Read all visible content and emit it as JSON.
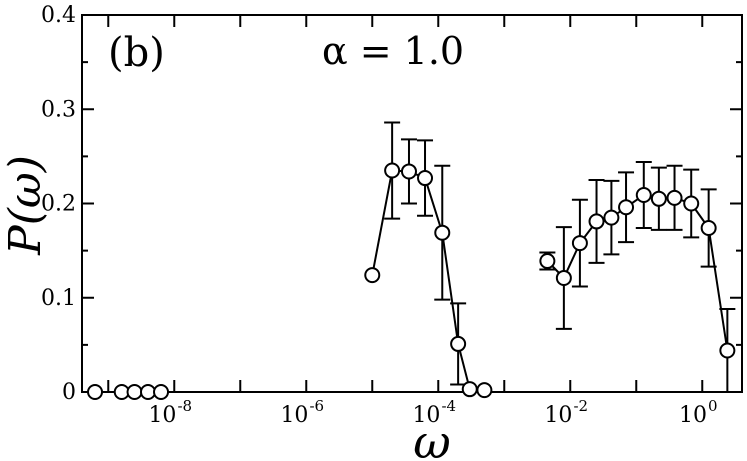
{
  "chart_data": {
    "type": "line",
    "panel_label": "(b)",
    "annotation": "α = 1.0",
    "xlabel": "ω",
    "ylabel": "P(ω)",
    "xscale": "log",
    "xlim": [
      4e-10,
      4
    ],
    "ylim": [
      0,
      0.4
    ],
    "yticks": [
      "0",
      "0.1",
      "0.2",
      "0.3",
      "0.4"
    ],
    "xticks": [
      {
        "base": "10",
        "exp": "-8"
      },
      {
        "base": "10",
        "exp": "-6"
      },
      {
        "base": "10",
        "exp": "-4"
      },
      {
        "base": "10",
        "exp": "0"
      },
      {
        "base": "10",
        "exp": "-2"
      }
    ],
    "grid": false,
    "series": [
      {
        "points": [
          {
            "x": 6.3e-10,
            "y": 0.0
          },
          {
            "x": 1.6e-09,
            "y": 0.0
          },
          {
            "x": 2.5e-09,
            "y": 0.0
          },
          {
            "x": 4e-09,
            "y": 0.0
          },
          {
            "x": 6.3e-09,
            "y": 0.0
          }
        ]
      },
      {
        "points": [
          {
            "x": 1e-05,
            "y": 0.124,
            "err": null
          },
          {
            "x": 2e-05,
            "y": 0.235,
            "err": 0.051
          },
          {
            "x": 3.6e-05,
            "y": 0.234,
            "err": 0.034
          },
          {
            "x": 6.3e-05,
            "y": 0.227,
            "err": 0.04
          },
          {
            "x": 0.000115,
            "y": 0.169,
            "err": 0.071
          },
          {
            "x": 0.0002,
            "y": 0.051,
            "err": 0.043
          },
          {
            "x": 0.0003,
            "y": 0.003,
            "err": null
          },
          {
            "x": 0.0005,
            "y": 0.002,
            "err": null
          }
        ]
      },
      {
        "points": [
          {
            "x": 0.0045,
            "y": 0.139,
            "err": 0.009
          },
          {
            "x": 0.008,
            "y": 0.121,
            "err": 0.054
          },
          {
            "x": 0.014,
            "y": 0.158,
            "err": 0.046
          },
          {
            "x": 0.025,
            "y": 0.181,
            "err": 0.044
          },
          {
            "x": 0.042,
            "y": 0.185,
            "err": 0.039
          },
          {
            "x": 0.07,
            "y": 0.196,
            "err": 0.037
          },
          {
            "x": 0.13,
            "y": 0.209,
            "err": 0.035
          },
          {
            "x": 0.22,
            "y": 0.205,
            "err": 0.033
          },
          {
            "x": 0.38,
            "y": 0.206,
            "err": 0.034
          },
          {
            "x": 0.68,
            "y": 0.2,
            "err": 0.036
          },
          {
            "x": 1.25,
            "y": 0.174,
            "err": 0.041
          },
          {
            "x": 2.4,
            "y": 0.044,
            "err": 0.044
          }
        ]
      }
    ]
  }
}
